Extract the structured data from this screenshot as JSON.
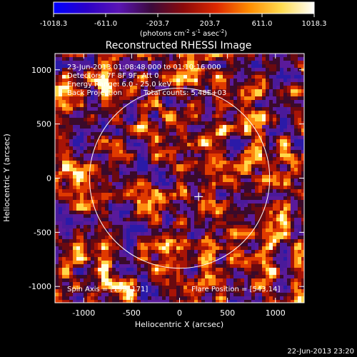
{
  "chart_data": {
    "type": "heatmap",
    "title": "Reconstructed RHESSI Image",
    "xlabel": "Heliocentric X (arcsec)",
    "ylabel": "Heliocentric Y (arcsec)",
    "xlim": [
      -1300,
      1300
    ],
    "ylim": [
      -1150,
      1150
    ],
    "x_ticks": [
      -1000,
      -500,
      0,
      500,
      1000
    ],
    "y_ticks": [
      -1000,
      -500,
      0,
      500,
      1000
    ],
    "x_tick_labels": [
      "-1000",
      "-500",
      "0",
      "500",
      "1000"
    ],
    "y_tick_labels": [
      "-1000",
      "-500",
      "0",
      "500",
      "1000"
    ],
    "colorbar": {
      "ticks": [
        -1018.3,
        -611.0,
        -203.7,
        203.7,
        611.0,
        1018.3
      ],
      "tick_labels": [
        "-1018.3",
        "-611.0",
        "-203.7",
        "203.7",
        "611.0",
        "1018.3"
      ],
      "units_label": "(photons cm",
      "units_exp1": "-2",
      "units_mid": " s",
      "units_exp2": "-1",
      "units_end": " asec",
      "units_exp3": "-2",
      "units_close": ")",
      "colors": [
        "#0000ff",
        "#2a00c8",
        "#5a14b4",
        "#3c0a3c",
        "#8c0a0a",
        "#dc2800",
        "#ff8c00",
        "#ffdc50",
        "#ffffff"
      ]
    },
    "annotations": {
      "time_range": "23-Jun-2013 01:08:48.000 to 01:10:16.000",
      "detectors": "Detectors: 7F 8F 9F, Att 0",
      "energy_range": "Energy Range: 6.0 - 25.0 keV",
      "method": "Back Projection",
      "total_counts": "Total counts: 5.48E+03",
      "spin_axis": "Spin Axis = [199,-171]",
      "flare_position": "Flare Position = [543,14]"
    },
    "solar_limb_radius_arcsec": 940,
    "cross_marker": [
      199,
      -171
    ],
    "footer_date": "22-Jun-2013 23:20"
  }
}
